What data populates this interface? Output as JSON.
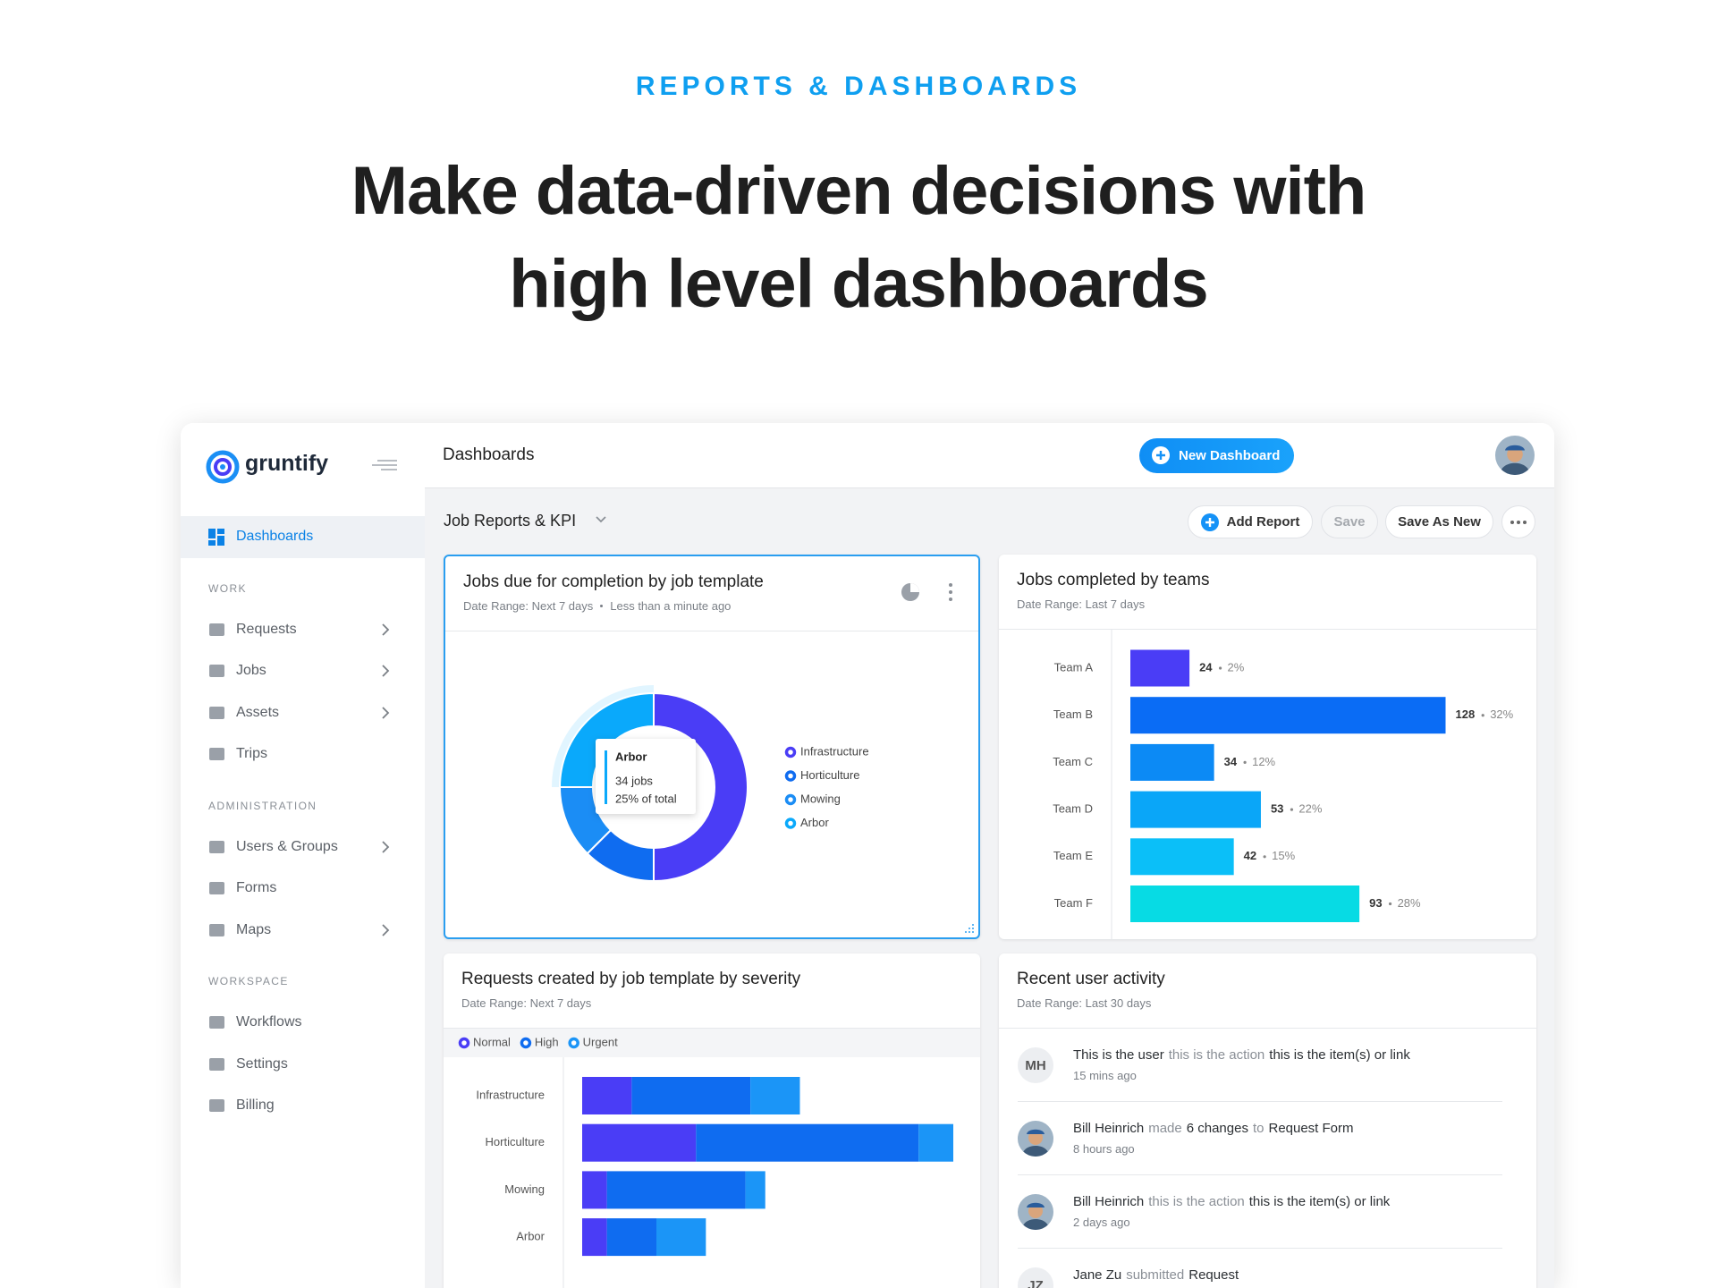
{
  "header": {
    "eyebrow": "REPORTS & DASHBOARDS",
    "title_lines": [
      "Make data-driven decisions with",
      "high level dashboards"
    ]
  },
  "sidebar": {
    "logo": "gruntify",
    "active": {
      "label": "Dashboards"
    },
    "sections": [
      {
        "heading": "WORK",
        "items": [
          {
            "label": "Requests",
            "expandable": true
          },
          {
            "label": "Jobs",
            "expandable": true
          },
          {
            "label": "Assets",
            "expandable": true
          },
          {
            "label": "Trips",
            "expandable": false
          }
        ]
      },
      {
        "heading": "ADMINISTRATION",
        "items": [
          {
            "label": "Users & Groups",
            "expandable": true
          },
          {
            "label": "Forms",
            "expandable": false
          },
          {
            "label": "Maps",
            "expandable": true
          }
        ]
      },
      {
        "heading": "WORKSPACE",
        "items": [
          {
            "label": "Workflows",
            "expandable": false
          },
          {
            "label": "Settings",
            "expandable": false
          },
          {
            "label": "Billing",
            "expandable": false
          }
        ]
      }
    ]
  },
  "topbar": {
    "title": "Dashboards",
    "button": "New Dashboard"
  },
  "toolbar": {
    "dashboard": "Job Reports & KPI",
    "actions": [
      {
        "label": "Add Report",
        "icon": "plus"
      },
      {
        "label": "Save",
        "disabled": true
      },
      {
        "label": "Save As New"
      }
    ]
  },
  "widgets": [
    {
      "title": "Jobs due for completion by job template",
      "meta": [
        "Date Range: Next 7 days",
        "Less than a minute ago"
      ],
      "selected": true,
      "chart": {
        "type": "donut",
        "categories": [
          "Infrastructure",
          "Horticulture",
          "Mowing",
          "Arbor"
        ],
        "values": [
          68,
          17,
          17,
          34
        ],
        "colors": [
          "#4a3df6",
          "#0f6cf0",
          "#1b8df5",
          "#0aa9fb"
        ],
        "legend": "right",
        "tooltip": {
          "index": 3,
          "lines": [
            "34 jobs",
            "25% of total"
          ]
        }
      }
    },
    {
      "title": "Jobs completed by teams",
      "meta": [
        "Date Range: Last 7 days"
      ],
      "chart": {
        "type": "bar",
        "orientation": "horizontal",
        "categories": [
          "Team A",
          "Team B",
          "Team C",
          "Team D",
          "Team E",
          "Team F"
        ],
        "values": [
          24,
          128,
          34,
          53,
          42,
          93
        ],
        "share_labels": [
          "2%",
          "32%",
          "12%",
          "22%",
          "15%",
          "28%"
        ],
        "colors": [
          "#4a3df6",
          "#0a6cf5",
          "#0c8af5",
          "#0aa6f8",
          "#0bbff8",
          "#07dbe4"
        ],
        "xlim": [
          0,
          130
        ]
      }
    },
    {
      "title": "Requests created by job template by severity",
      "meta": [
        "Date Range: Next 7 days"
      ],
      "chart": {
        "type": "stacked-bar",
        "orientation": "horizontal",
        "categories": [
          "Infrastructure",
          "Horticulture",
          "Mowing",
          "Arbor"
        ],
        "legend": "top",
        "series": [
          {
            "name": "Normal",
            "color": "#4a3df6",
            "values": [
              10,
              23,
              5,
              5
            ]
          },
          {
            "name": "High",
            "color": "#0f6cf0",
            "values": [
              24,
              45,
              28,
              10
            ]
          },
          {
            "name": "Urgent",
            "color": "#1b95f7",
            "values": [
              10,
              7,
              4,
              10
            ]
          }
        ],
        "xlim": [
          0,
          75
        ]
      }
    },
    {
      "title": "Recent user activity",
      "meta": [
        "Date Range: Last 30 days"
      ],
      "activity": [
        {
          "initials": "MH",
          "parts": [
            {
              "text": "This is the user",
              "strong": true
            },
            {
              "text": "this is the action"
            },
            {
              "text": "this is the item(s) or link",
              "strong": true
            }
          ],
          "time": "15 mins ago"
        },
        {
          "avatar": "photo",
          "parts": [
            {
              "text": "Bill Heinrich",
              "strong": true
            },
            {
              "text": "made"
            },
            {
              "text": "6 changes",
              "strong": true
            },
            {
              "text": "to"
            },
            {
              "text": "Request Form",
              "strong": true
            }
          ],
          "time": "8 hours ago"
        },
        {
          "avatar": "photo",
          "parts": [
            {
              "text": "Bill Heinrich",
              "strong": true
            },
            {
              "text": "this is the action"
            },
            {
              "text": "this is the item(s) or link",
              "strong": true
            }
          ],
          "time": "2 days ago"
        },
        {
          "initials": "JZ",
          "parts": [
            {
              "text": "Jane Zu",
              "strong": true
            },
            {
              "text": "submitted"
            },
            {
              "text": "Request",
              "strong": true
            }
          ]
        }
      ]
    }
  ]
}
